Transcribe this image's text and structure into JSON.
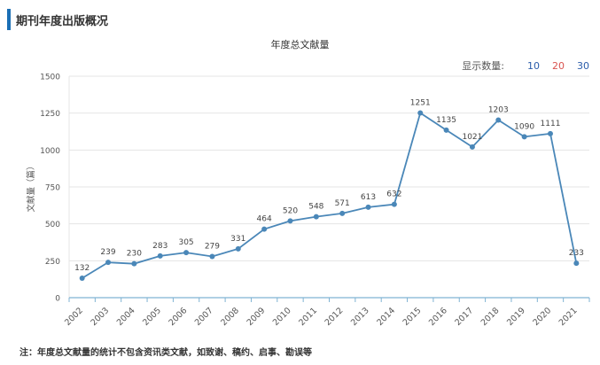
{
  "section": {
    "title": "期刊年度出版概况"
  },
  "count_switch": {
    "label": "显示数量:",
    "options": [
      "10",
      "20",
      "30"
    ]
  },
  "footnote": "注：年度总文献量的统计不包含资讯类文献，如致谢、稿约、启事、勘误等",
  "colors": {
    "line": "#4a87b8",
    "axis": "#7fb3d3",
    "grid": "#e5e5e5",
    "accent": "#1a6fb5"
  },
  "chart_data": {
    "type": "line",
    "title": "年度总文献量",
    "xlabel": "",
    "ylabel": "文献量（篇）",
    "ylim": [
      0,
      1500
    ],
    "yticks": [
      0,
      250,
      500,
      750,
      1000,
      1250,
      1500
    ],
    "grid": true,
    "categories": [
      "2002",
      "2003",
      "2004",
      "2005",
      "2006",
      "2007",
      "2008",
      "2009",
      "2010",
      "2011",
      "2012",
      "2013",
      "2014",
      "2015",
      "2016",
      "2017",
      "2018",
      "2019",
      "2020",
      "2021"
    ],
    "series": [
      {
        "values": [
          132,
          239,
          230,
          283,
          305,
          279,
          331,
          464,
          520,
          548,
          571,
          613,
          632,
          1251,
          1135,
          1021,
          1203,
          1090,
          1111,
          233
        ]
      }
    ]
  }
}
